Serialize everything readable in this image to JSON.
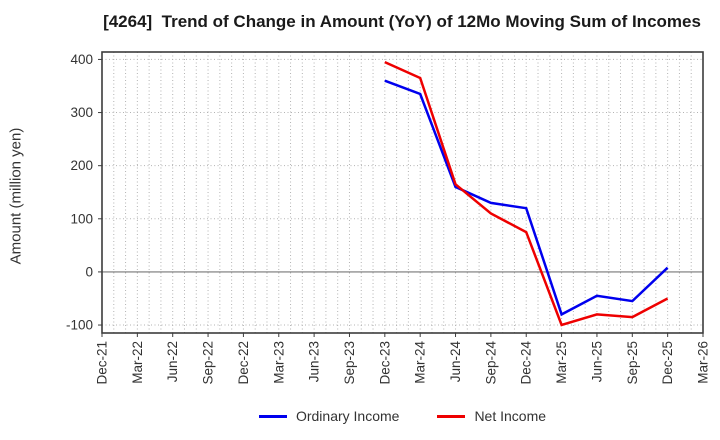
{
  "title": "[4264]  Trend of Change in Amount (YoY) of 12Mo Moving Sum of Incomes",
  "chart_data": {
    "type": "line",
    "title": "[4264]  Trend of Change in Amount (YoY) of 12Mo Moving Sum of Incomes",
    "xlabel": "",
    "ylabel": "Amount (million yen)",
    "x_tick_labels": [
      "Dec-21",
      "Mar-22",
      "Jun-22",
      "Sep-22",
      "Dec-22",
      "Mar-23",
      "Jun-23",
      "Sep-23",
      "Dec-23",
      "Mar-24",
      "Jun-24",
      "Sep-24",
      "Dec-24",
      "Mar-25",
      "Jun-25",
      "Sep-25",
      "Dec-25",
      "Mar-26"
    ],
    "y_ticks": [
      -100,
      0,
      100,
      200,
      300,
      400
    ],
    "ylim": [
      -115,
      414
    ],
    "grid": {
      "vertical": "monthly dotted",
      "horizontal": "every 100 dotted",
      "zero_line": "solid"
    },
    "legend_position": "bottom-center",
    "series": [
      {
        "name": "Ordinary Income",
        "color": "#0000ee",
        "x": [
          "Dec-23",
          "Mar-24",
          "Jun-24",
          "Sep-24",
          "Dec-24",
          "Mar-25",
          "Jun-25",
          "Sep-25",
          "Dec-25"
        ],
        "values": [
          360,
          335,
          160,
          130,
          120,
          -80,
          -45,
          -55,
          8
        ]
      },
      {
        "name": "Net Income",
        "color": "#ee0000",
        "x": [
          "Dec-23",
          "Mar-24",
          "Jun-24",
          "Sep-24",
          "Dec-24",
          "Mar-25",
          "Jun-25",
          "Sep-25",
          "Dec-25"
        ],
        "values": [
          395,
          365,
          165,
          110,
          75,
          -100,
          -80,
          -85,
          -50
        ]
      }
    ]
  },
  "colors": {
    "grid": "#b3b3b3",
    "axis_border": "#3c3c3c",
    "zero_line": "#777777",
    "tick_label": "#333333",
    "title_text": "#1a1a1a"
  }
}
